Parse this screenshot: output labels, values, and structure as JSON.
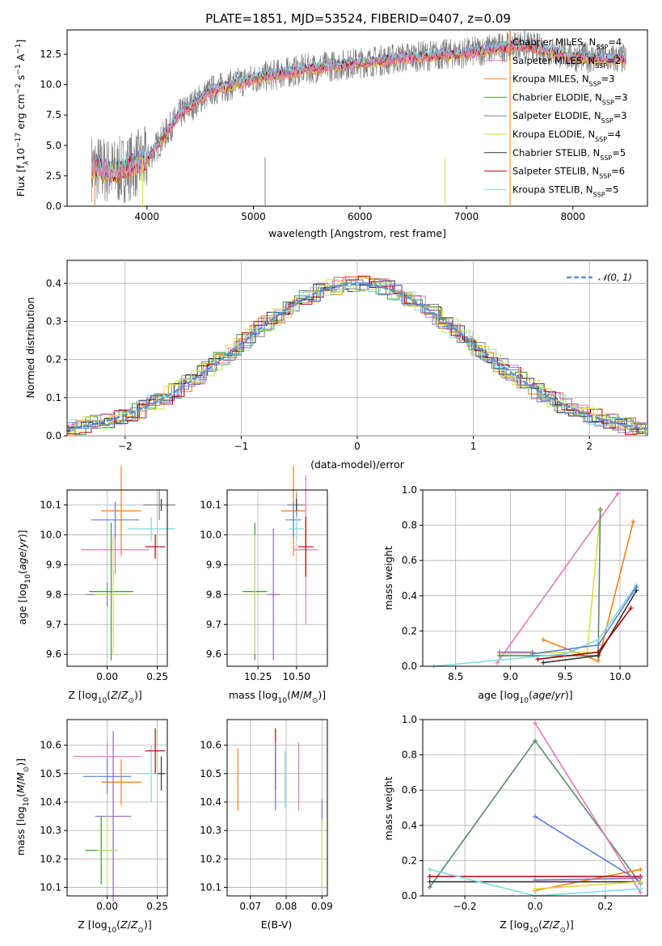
{
  "title": "PLATE=1851, MJD=53524, FIBERID=0407, z=0.09",
  "colors": {
    "Chabrier MILES": "#7f7f7f",
    "Salpeter MILES": "#e377c2",
    "Kroupa MILES": "#ff7f0e",
    "Chabrier ELODIE": "#2ca02c",
    "Salpeter ELODIE": "#9467bd",
    "Kroupa ELODIE": "#dbdb44",
    "Chabrier STELIB": "#333333",
    "Salpeter STELIB": "#b00000",
    "Kroupa STELIB": "#7fd9e0",
    "gaussian": "#5b8fd6",
    "extra_blue": "#5b7fd6",
    "extra_green": "#5a8a6a",
    "extra_lime": "#c8e36a"
  },
  "chart_data": [
    {
      "id": "spectrum",
      "type": "line",
      "title": "PLATE=1851, MJD=53524, FIBERID=0407, z=0.09",
      "xlabel": "wavelength [Angstrom, rest frame]",
      "ylabel": "Flux [f",
      "ylabel_full": "Flux [f_λ 10^-17 erg cm^-2 s^-1 A^-1]",
      "xlim": [
        3250,
        8700
      ],
      "ylim": [
        0,
        14.5
      ],
      "xticks": [
        "4000",
        "5000",
        "6000",
        "7000",
        "8000"
      ],
      "yticks": [
        "0.0",
        "2.5",
        "5.0",
        "7.5",
        "10.0",
        "12.5"
      ],
      "data_shape": {
        "x": [
          3500,
          3700,
          4000,
          4300,
          4600,
          5000,
          5500,
          6000,
          6500,
          7000,
          7500,
          8000,
          8400
        ],
        "y": [
          3.2,
          2.8,
          3.8,
          7.5,
          9.5,
          10.5,
          11.3,
          11.8,
          12.3,
          12.6,
          13.3,
          12.3,
          12.1
        ]
      },
      "legend": [
        {
          "name": "Chabrier MILES",
          "nssp": "4"
        },
        {
          "name": "Salpeter MILES",
          "nssp": "2"
        },
        {
          "name": "Kroupa MILES",
          "nssp": "3"
        },
        {
          "name": "Chabrier ELODIE",
          "nssp": "3"
        },
        {
          "name": "Salpeter ELODIE",
          "nssp": "3"
        },
        {
          "name": "Kroupa ELODIE",
          "nssp": "4"
        },
        {
          "name": "Chabrier STELIB",
          "nssp": "5"
        },
        {
          "name": "Salpeter STELIB",
          "nssp": "6"
        },
        {
          "name": "Kroupa STELIB",
          "nssp": "5"
        }
      ],
      "legend_placement": "upper right"
    },
    {
      "id": "residuals",
      "type": "line",
      "xlabel": "(data-model)/error",
      "ylabel": "Normed distribution",
      "xlim": [
        -2.5,
        2.5
      ],
      "ylim": [
        0,
        0.46
      ],
      "xticks": [
        "−2",
        "−1",
        "0",
        "1",
        "2"
      ],
      "yticks": [
        "0.0",
        "0.1",
        "0.2",
        "0.3",
        "0.4"
      ],
      "legend": "𝒩(0, 1)",
      "grid": true
    },
    {
      "id": "age_vs_Z",
      "type": "scatter",
      "xlabel": "Z [log",
      "ylabel": "age  [log",
      "xlim": [
        -0.2,
        0.3
      ],
      "ylim": [
        9.56,
        10.15
      ],
      "xticks": [
        "0.00",
        "0.25"
      ],
      "yticks": [
        "9.6",
        "9.7",
        "9.8",
        "9.9",
        "10.0",
        "10.1"
      ],
      "points": [
        {
          "c": "Chabrier MILES",
          "x": 0.26,
          "y": 10.1,
          "xerr": 0.08,
          "yerr": 0.05
        },
        {
          "c": "Salpeter MILES",
          "x": 0.04,
          "y": 9.95,
          "xerr": 0.17,
          "yerr": 0.08
        },
        {
          "c": "Kroupa MILES",
          "x": 0.07,
          "y": 10.08,
          "xerr": 0.1,
          "yerr": 0.15
        },
        {
          "c": "extra_blue",
          "x": 0.04,
          "y": 10.05,
          "xerr": 0.12,
          "yerr": 0.06
        },
        {
          "c": "Kroupa STELIB",
          "x": 0.22,
          "y": 10.02,
          "xerr": 0.12,
          "yerr": 0.04
        },
        {
          "c": "Chabrier STELIB",
          "x": 0.27,
          "y": 10.1,
          "xerr": 0.0,
          "yerr": 0.02
        },
        {
          "c": "Salpeter STELIB",
          "x": 0.24,
          "y": 9.96,
          "xerr": 0.05,
          "yerr": 0.04
        },
        {
          "c": "Salpeter ELODIE",
          "x": 0.0,
          "y": 9.8,
          "xerr": 0.11,
          "yerr": 0.04
        },
        {
          "c": "Chabrier ELODIE",
          "x": 0.02,
          "y": 9.81,
          "xerr": 0.11,
          "yerr": 0.23
        },
        {
          "c": "extra_lime",
          "x": 0.03,
          "y": 9.8,
          "xerr": 0.09,
          "yerr": 0.2
        }
      ]
    },
    {
      "id": "age_vs_mass",
      "type": "scatter",
      "xlabel": "mass [log",
      "xlim": [
        10.05,
        10.7
      ],
      "ylim": [
        9.56,
        10.15
      ],
      "xticks": [
        "10.25",
        "10.50"
      ],
      "yticks": [
        "9.6",
        "9.7",
        "9.8",
        "9.9",
        "10.0",
        "10.1"
      ],
      "points": [
        {
          "c": "Chabrier MILES",
          "x": 10.5,
          "y": 10.1,
          "xerr": 0.06,
          "yerr": 0.04
        },
        {
          "c": "Salpeter MILES",
          "x": 10.56,
          "y": 9.95,
          "xerr": 0.08,
          "yerr": 0.25
        },
        {
          "c": "Kroupa MILES",
          "x": 10.48,
          "y": 10.08,
          "xerr": 0.08,
          "yerr": 0.15
        },
        {
          "c": "extra_blue",
          "x": 10.48,
          "y": 10.05,
          "xerr": 0.05,
          "yerr": 0.06
        },
        {
          "c": "Kroupa STELIB",
          "x": 10.5,
          "y": 10.02,
          "xerr": 0.05,
          "yerr": 0.04
        },
        {
          "c": "Chabrier STELIB",
          "x": 10.5,
          "y": 10.1,
          "xerr": 0.0,
          "yerr": 0.02
        },
        {
          "c": "Salpeter STELIB",
          "x": 10.56,
          "y": 9.96,
          "xerr": 0.05,
          "yerr": 0.1
        },
        {
          "c": "Salpeter ELODIE",
          "x": 10.35,
          "y": 9.8,
          "xerr": 0.04,
          "yerr": 0.22
        },
        {
          "c": "Chabrier ELODIE",
          "x": 10.23,
          "y": 9.81,
          "xerr": 0.08,
          "yerr": 0.23
        },
        {
          "c": "extra_lime",
          "x": 10.23,
          "y": 9.8,
          "xerr": 0.05,
          "yerr": 0.2
        }
      ]
    },
    {
      "id": "massweight_vs_age",
      "type": "line",
      "xlabel": "age  [log",
      "ylabel": "mass weight",
      "xlim": [
        8.2,
        10.25
      ],
      "ylim": [
        0,
        1
      ],
      "xticks": [
        "8.5",
        "9.0",
        "9.5",
        "10.0"
      ],
      "yticks": [
        "0.0",
        "0.2",
        "0.4",
        "0.6",
        "0.8",
        "1.0"
      ],
      "series": [
        {
          "c": "Salpeter MILES",
          "x": [
            8.88,
            9.98
          ],
          "y": [
            0.02,
            0.98
          ]
        },
        {
          "c": "Kroupa MILES",
          "x": [
            9.3,
            9.8,
            10.12
          ],
          "y": [
            0.15,
            0.03,
            0.82
          ]
        },
        {
          "c": "Kroupa ELODIE",
          "x": [
            8.9,
            9.7,
            9.82
          ],
          "y": [
            0.07,
            0.08,
            0.88
          ]
        },
        {
          "c": "extra_green",
          "x": [
            8.9,
            9.8,
            9.82
          ],
          "y": [
            0.06,
            0.06,
            0.89
          ]
        },
        {
          "c": "Chabrier STELIB",
          "x": [
            9.3,
            9.8,
            10.15
          ],
          "y": [
            0.02,
            0.06,
            0.43
          ]
        },
        {
          "c": "Salpeter STELIB",
          "x": [
            9.25,
            9.8,
            10.1
          ],
          "y": [
            0.04,
            0.08,
            0.33
          ]
        },
        {
          "c": "Kroupa STELIB",
          "x": [
            8.3,
            9.5,
            9.8,
            10.15
          ],
          "y": [
            0.0,
            0.07,
            0.15,
            0.46
          ]
        },
        {
          "c": "extra_blue",
          "x": [
            9.2,
            9.8,
            10.15
          ],
          "y": [
            0.07,
            0.12,
            0.45
          ]
        },
        {
          "c": "Salpeter ELODIE",
          "x": [
            8.9,
            9.2
          ],
          "y": [
            0.08,
            0.08
          ]
        }
      ]
    },
    {
      "id": "mass_vs_Z",
      "type": "scatter",
      "xlabel": "Z [log",
      "ylabel": "mass [log",
      "xlim": [
        -0.2,
        0.3
      ],
      "ylim": [
        10.07,
        10.69
      ],
      "xticks": [
        "0.00",
        "0.25"
      ],
      "yticks": [
        "10.1",
        "10.2",
        "10.3",
        "10.4",
        "10.5",
        "10.6"
      ],
      "points": [
        {
          "c": "Salpeter MILES",
          "x": 0.0,
          "y": 10.56,
          "xerr": 0.17,
          "yerr": 0.05
        },
        {
          "c": "Kroupa MILES",
          "x": 0.07,
          "y": 10.47,
          "xerr": 0.1,
          "yerr": 0.08
        },
        {
          "c": "extra_blue",
          "x": 0.0,
          "y": 10.49,
          "xerr": 0.12,
          "yerr": 0.06
        },
        {
          "c": "Kroupa STELIB",
          "x": 0.22,
          "y": 10.5,
          "xerr": 0.06,
          "yerr": 0.1
        },
        {
          "c": "Chabrier STELIB",
          "x": 0.27,
          "y": 10.5,
          "xerr": 0.02,
          "yerr": 0.06
        },
        {
          "c": "Salpeter STELIB",
          "x": 0.24,
          "y": 10.58,
          "xerr": 0.05,
          "yerr": 0.08
        },
        {
          "c": "Salpeter ELODIE",
          "x": 0.03,
          "y": 10.35,
          "xerr": 0.09,
          "yerr": 0.3
        },
        {
          "c": "Chabrier ELODIE",
          "x": -0.03,
          "y": 10.23,
          "xerr": 0.08,
          "yerr": 0.12
        },
        {
          "c": "extra_lime",
          "x": 0.0,
          "y": 10.23,
          "xerr": 0.05,
          "yerr": 0.12
        }
      ]
    },
    {
      "id": "mass_vs_ebv",
      "type": "scatter",
      "xlabel": "E(B-V)",
      "xlim": [
        0.0635,
        0.0915
      ],
      "ylim": [
        10.07,
        10.69
      ],
      "xticks": [
        "0.07",
        "0.08",
        "0.09"
      ],
      "yticks": [
        "10.1",
        "10.2",
        "10.3",
        "10.4",
        "10.5",
        "10.6"
      ],
      "points": [
        {
          "c": "Kroupa MILES",
          "x": 0.0665,
          "y": 10.48,
          "yerr": 0.11
        },
        {
          "c": "Salpeter STELIB",
          "x": 0.077,
          "y": 10.55,
          "yerr": 0.11
        },
        {
          "c": "extra_blue",
          "x": 0.077,
          "y": 10.49,
          "yerr": 0.12
        },
        {
          "c": "Kroupa STELIB",
          "x": 0.0797,
          "y": 10.48,
          "yerr": 0.1
        },
        {
          "c": "Salpeter MILES",
          "x": 0.0835,
          "y": 10.49,
          "yerr": 0.12
        },
        {
          "c": "Salpeter ELODIE",
          "x": 0.09,
          "y": 10.35,
          "yerr": 0.06
        },
        {
          "c": "extra_lime",
          "x": 0.09,
          "y": 10.22,
          "yerr": 0.12
        }
      ]
    },
    {
      "id": "massweight_vs_Z",
      "type": "line",
      "xlabel": "Z [log",
      "ylabel": "mass weight",
      "xlim": [
        -0.32,
        0.32
      ],
      "ylim": [
        0,
        1
      ],
      "xticks": [
        "−0.2",
        "0.0",
        "0.2"
      ],
      "yticks": [
        "0.0",
        "0.2",
        "0.4",
        "0.6",
        "0.8",
        "1.0"
      ],
      "series": [
        {
          "c": "extra_green",
          "x": [
            -0.3,
            0.0,
            0.3
          ],
          "y": [
            0.05,
            0.88,
            0.07
          ]
        },
        {
          "c": "Salpeter MILES",
          "x": [
            0.0,
            0.3
          ],
          "y": [
            0.98,
            0.02
          ]
        },
        {
          "c": "Kroupa MILES",
          "x": [
            0.0,
            0.3
          ],
          "y": [
            0.03,
            0.15
          ]
        },
        {
          "c": "Chabrier STELIB",
          "x": [
            -0.3,
            0.3
          ],
          "y": [
            0.08,
            0.08
          ]
        },
        {
          "c": "Salpeter STELIB",
          "x": [
            -0.3,
            0.3
          ],
          "y": [
            0.11,
            0.11
          ]
        },
        {
          "c": "Kroupa STELIB",
          "x": [
            -0.3,
            0.0,
            0.3
          ],
          "y": [
            0.15,
            0.0,
            0.04
          ]
        },
        {
          "c": "extra_blue",
          "x": [
            0.0,
            0.3
          ],
          "y": [
            0.45,
            0.08
          ]
        },
        {
          "c": "Kroupa ELODIE",
          "x": [
            0.0,
            0.3
          ],
          "y": [
            0.04,
            0.08
          ]
        },
        {
          "c": "Salpeter ELODIE",
          "x": [
            0.0,
            0.3
          ],
          "y": [
            0.09,
            0.1
          ]
        }
      ]
    }
  ]
}
